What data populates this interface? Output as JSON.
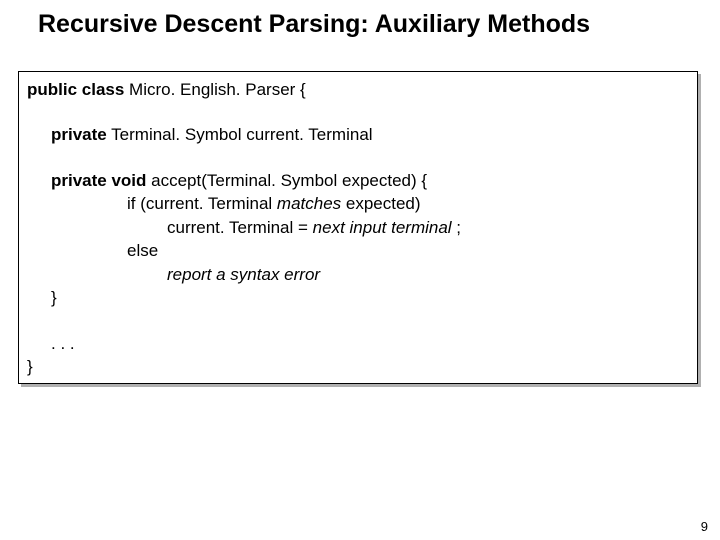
{
  "title": "Recursive Descent Parsing: Auxiliary Methods",
  "code": {
    "class_decl_kw": "public class",
    "class_name": " Micro. English. Parser {",
    "field_kw": "private",
    "field_rest": " Terminal. Symbol current. Terminal",
    "method_kw": "private void",
    "method_rest": " accept(Terminal. Symbol expected) {",
    "if_prefix": "if (current. Terminal ",
    "matches": "matches",
    "if_suffix": " expected)",
    "assign_prefix": "current. Terminal = ",
    "assign_ital": "next input terminal",
    "assign_suffix": " ;",
    "else_kw": "else",
    "report": "report a syntax error",
    "brace": "}",
    "dots": ". . .",
    "close_brace": "}"
  },
  "page_number": "9",
  "colors": {
    "shadow": "#b0b0b0",
    "text": "#000000",
    "bg": "#ffffff"
  }
}
